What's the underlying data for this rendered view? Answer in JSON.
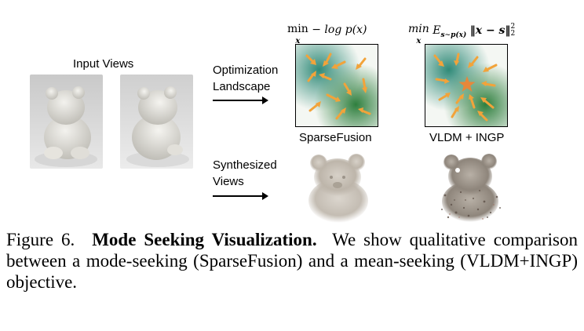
{
  "figure": {
    "input_views_label": "Input Views",
    "optimization_label_line1": "Optimization",
    "optimization_label_line2": "Landscape",
    "synthesized_label_line1": "Synthesized",
    "synthesized_label_line2": "Views",
    "method_left": "SparseFusion",
    "method_right": "VLDM + INGP",
    "eq_left_op": "min",
    "eq_left_sub": "x",
    "eq_left_expr": "− log p(x)",
    "eq_right_op": "min",
    "eq_right_sub": "x",
    "eq_right_expr": "E",
    "eq_right_expr_sub": "s∼p(x)",
    "eq_right_norm": "‖x − s‖",
    "eq_right_sup": "2",
    "eq_right_normsub": "2",
    "colors": {
      "arrow_orange": "#f2a33a",
      "star_orange": "#e8873a",
      "landscape_green": "#2f7f3e",
      "landscape_teal": "#2f8a78"
    }
  },
  "caption": {
    "figure_number": "Figure 6.",
    "title": "Mode Seeking Visualization.",
    "body": "We show qualitative comparison between a mode-seeking (SparseFusion) and a mean-seeking (VLDM+INGP) objective."
  }
}
